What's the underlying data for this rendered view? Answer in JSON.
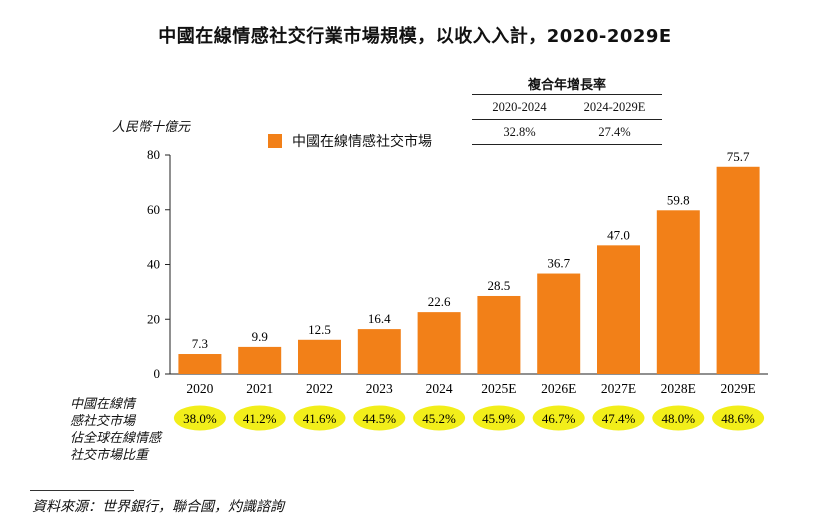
{
  "chart_data": {
    "type": "bar",
    "title": "中國在線情感社交行業市場規模，以收入入計，2020-2029E",
    "ylabel": "人民幣十億元",
    "ylim": [
      0,
      80
    ],
    "yticks": [
      0,
      20,
      40,
      60,
      80
    ],
    "categories": [
      "2020",
      "2021",
      "2022",
      "2023",
      "2024",
      "2025E",
      "2026E",
      "2027E",
      "2028E",
      "2029E"
    ],
    "series": [
      {
        "name": "中國在線情感社交市場",
        "values": [
          7.3,
          9.9,
          12.5,
          16.4,
          22.6,
          28.5,
          36.7,
          47.0,
          59.8,
          75.7
        ],
        "labels": [
          "7.3",
          "9.9",
          "12.5",
          "16.4",
          "22.6",
          "28.5",
          "36.7",
          "47.0",
          "59.8",
          "75.7"
        ]
      }
    ],
    "colors": {
      "bar": "#F28018",
      "share_ellipse": "#F2EE1A"
    },
    "legend_position": "top-left",
    "grid": false,
    "share_row": {
      "label_lines": [
        "中國在線情",
        "感社交市場",
        "佔全球在線情感",
        "社交市場比重"
      ],
      "values": [
        "38.0%",
        "41.2%",
        "41.6%",
        "44.5%",
        "45.2%",
        "45.9%",
        "46.7%",
        "47.4%",
        "48.0%",
        "48.6%"
      ]
    },
    "cagr_table": {
      "title": "複合年增長率",
      "periods": [
        "2020-2024",
        "2024-2029E"
      ],
      "values": [
        "32.8%",
        "27.4%"
      ]
    }
  },
  "source": "資料來源：世界銀行，聯合國，灼識諮詢"
}
